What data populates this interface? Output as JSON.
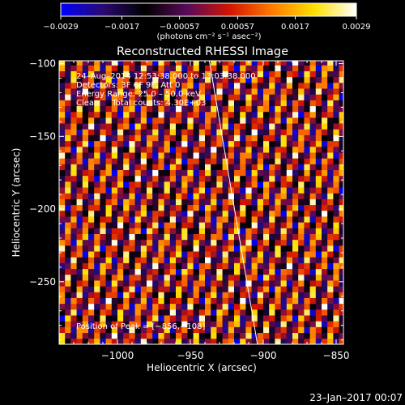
{
  "chart_data": {
    "type": "heatmap",
    "title": "Reconstructed RHESSI Image",
    "xlabel": "Heliocentric X (arcsec)",
    "ylabel": "Heliocentric Y (arcsec)",
    "xlim": [
      -1040,
      -845
    ],
    "ylim": [
      -293,
      -98
    ],
    "x_ticks": [
      -1000,
      -950,
      -900,
      -850
    ],
    "y_ticks": [
      -100,
      -150,
      -200,
      -250
    ],
    "x_tick_labels": [
      "−1000",
      "−950",
      "−900",
      "−850"
    ],
    "y_tick_labels": [
      "−100",
      "−150",
      "−200",
      "−250"
    ],
    "colorbar": {
      "range": [
        -0.0029,
        0.0029
      ],
      "tick_values": [
        -0.0029,
        -0.0017,
        -0.00057,
        0.00057,
        0.0017,
        0.0029
      ],
      "tick_labels": [
        "−0.0029",
        "−0.0017",
        "−0.00057",
        "0.00057",
        "0.0017",
        "0.0029"
      ],
      "unit_label": "(photons cm⁻² s⁻¹ asec⁻²)",
      "colormap": [
        "#0000ff",
        "#2a0a70",
        "#000000",
        "#5a0a5a",
        "#d21400",
        "#ff7a00",
        "#ffe000",
        "#ffffff"
      ]
    },
    "annotations": {
      "time": "24–Aug–2014 12:53:38.000 to 13:03:38.000",
      "detectors": "Detectors: 3F 6F 9F, Att 0",
      "energy": "Energy Range: 25.0 – 50.0 keV",
      "clean": "Clean     Total counts: 4.30E+03",
      "peak": "Position of Peak = [−856,−108]"
    },
    "limb_line": {
      "x": [
        -937,
        -904
      ],
      "y": [
        -98,
        -293
      ]
    },
    "pattern": {
      "pixel_arcsec": 4,
      "stripe_dir": [
        0.55,
        -0.2
      ],
      "modulation_dir": [
        -0.2,
        0.5
      ],
      "amplitude": 0.0029
    }
  },
  "footer": {
    "date": "23–Jan–2017 00:07"
  }
}
